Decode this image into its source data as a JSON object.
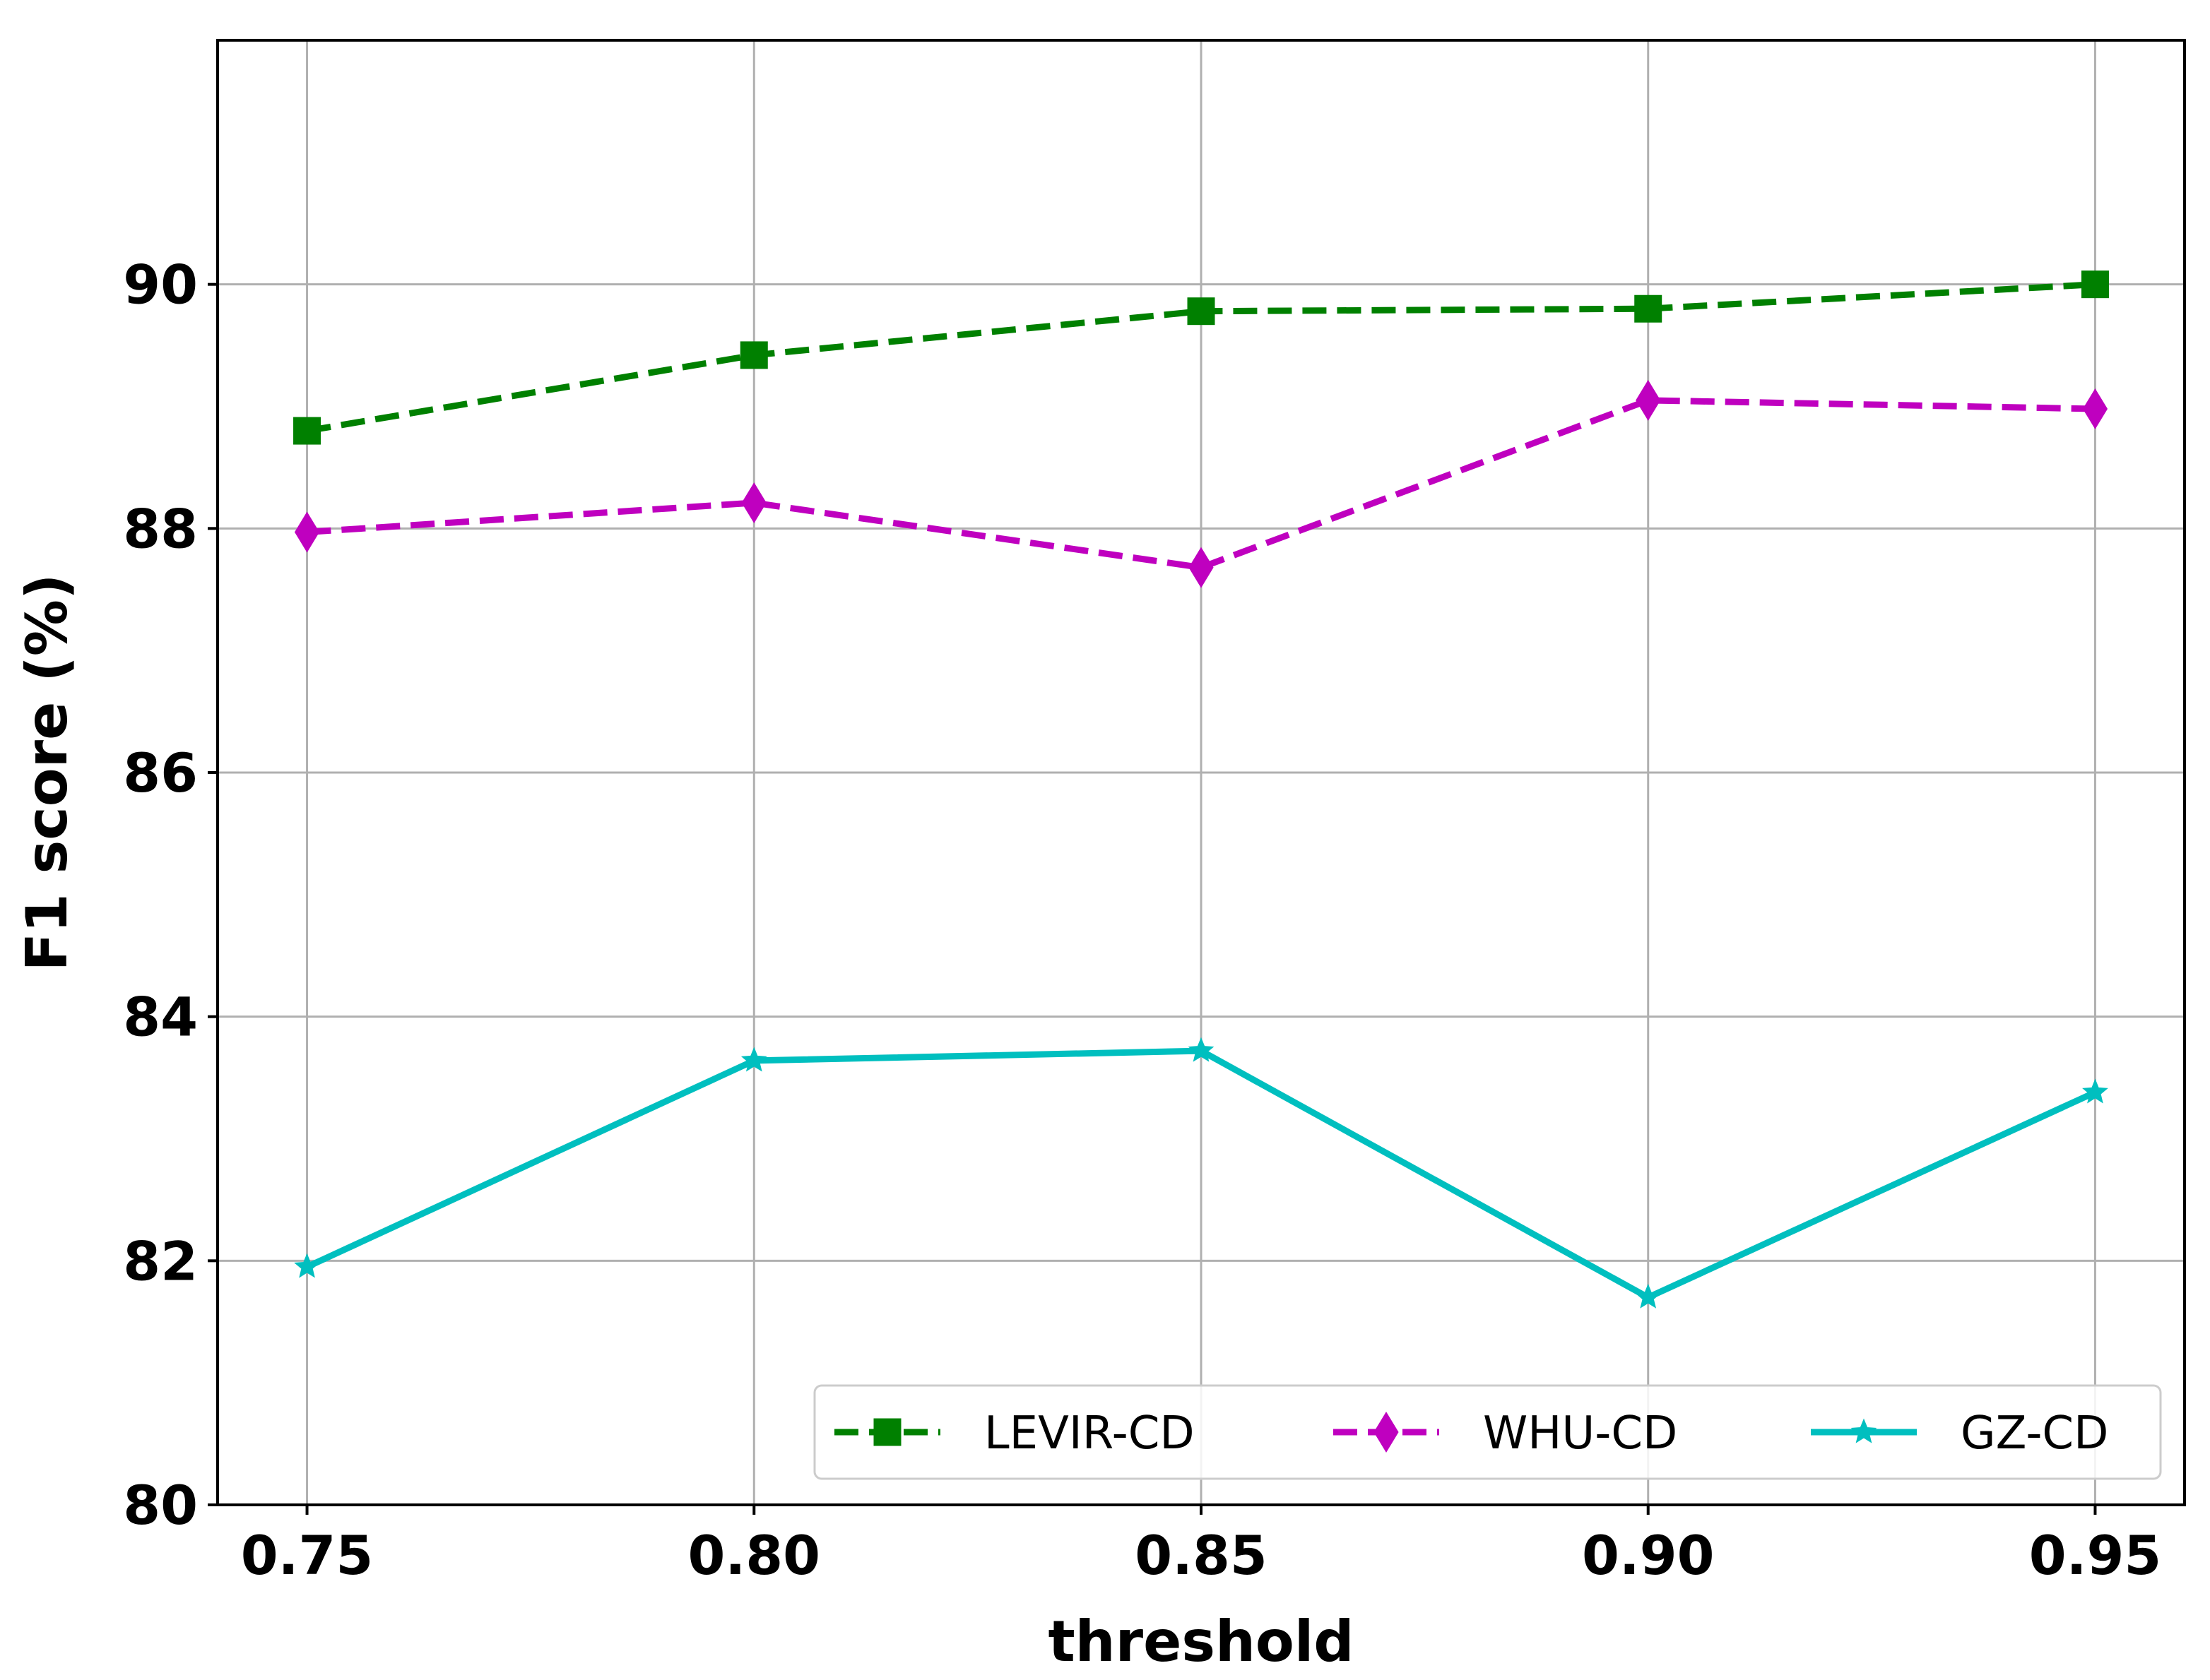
{
  "chart_data": {
    "type": "line",
    "title": "",
    "xlabel": "threshold",
    "ylabel": "F1 score (%)",
    "x": [
      0.75,
      0.8,
      0.85,
      0.9,
      0.95
    ],
    "x_tick_labels": [
      "0.75",
      "0.80",
      "0.85",
      "0.90",
      "0.95"
    ],
    "y_ticks": [
      80,
      82,
      84,
      86,
      88,
      90
    ],
    "y_tick_labels": [
      "80",
      "82",
      "84",
      "86",
      "88",
      "90"
    ],
    "xlim": [
      0.74,
      0.96
    ],
    "ylim": [
      80,
      92
    ],
    "grid": true,
    "legend_position": "lower-right",
    "series": [
      {
        "name": "LEVIR-CD",
        "values": [
          88.8,
          89.42,
          89.78,
          89.8,
          90.0
        ],
        "color": "#008000",
        "style": "dashed",
        "marker": "square"
      },
      {
        "name": "WHU-CD",
        "values": [
          87.97,
          88.21,
          87.68,
          89.05,
          88.98
        ],
        "color": "#bf00bf",
        "style": "dashed",
        "marker": "diamond"
      },
      {
        "name": "GZ-CD",
        "values": [
          81.95,
          83.64,
          83.72,
          81.7,
          83.38
        ],
        "color": "#00bfbf",
        "style": "solid",
        "marker": "star"
      }
    ]
  }
}
